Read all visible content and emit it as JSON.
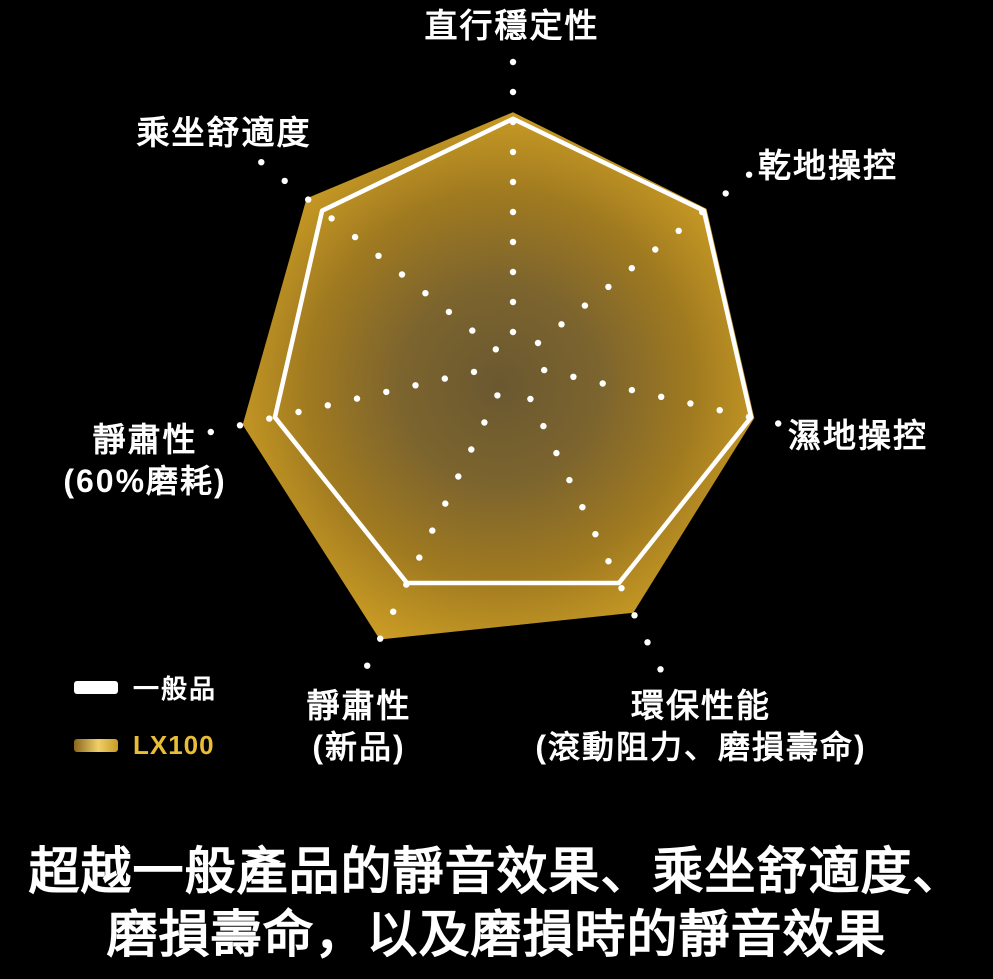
{
  "chart_data": {
    "type": "radar",
    "axes": [
      {
        "id": "straight-stability",
        "label": "直行穩定性"
      },
      {
        "id": "dry-handling",
        "label": "乾地操控"
      },
      {
        "id": "wet-handling",
        "label": "濕地操控"
      },
      {
        "id": "eco-performance",
        "label": "環保性能",
        "sublabel": "(滾動阻力、磨損壽命)"
      },
      {
        "id": "quietness-new",
        "label": "靜肅性",
        "sublabel": "(新品)"
      },
      {
        "id": "quietness-worn",
        "label": "靜肅性",
        "sublabel": "(60%磨耗)"
      },
      {
        "id": "ride-comfort",
        "label": "乘坐舒適度"
      }
    ],
    "series": [
      {
        "name": "一般品",
        "style": "white-outline",
        "values": [
          74,
          74,
          74,
          74,
          74,
          74,
          74
        ]
      },
      {
        "name": "LX100",
        "style": "gold-fill",
        "values": [
          76,
          75,
          75,
          84,
          93,
          84,
          80
        ]
      }
    ],
    "scale_max": 100,
    "grid": "dotted-radial-axes",
    "legend_position": "bottom-left"
  },
  "legend": {
    "items": [
      {
        "label": "一般品",
        "swatch": "white"
      },
      {
        "label": "LX100",
        "swatch": "gold"
      }
    ]
  },
  "caption": {
    "line1": "超越一般產品的靜音效果、乘坐舒適度、",
    "line2": "磨損壽命，以及磨損時的靜音效果"
  },
  "colors": {
    "background": "#000000",
    "gold_edge": "#dfae33",
    "gold_center": "#6a5830",
    "standard_line": "#ffffff",
    "axis_dots": "#ffffff",
    "lx100_label_text": "#e9bd35"
  }
}
